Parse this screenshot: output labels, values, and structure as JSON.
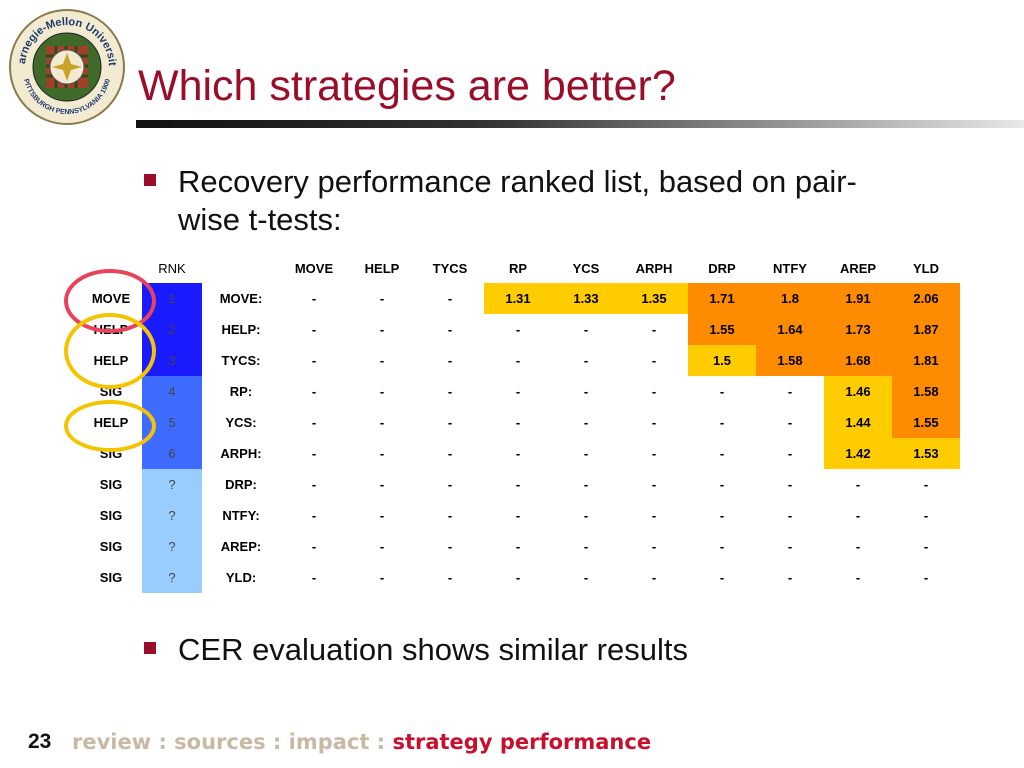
{
  "logo": {
    "text_top": "Carnegie-Mellon University",
    "text_bottom": "PITTSBURGH PENNSYLVANIA 1900"
  },
  "title": "Which strategies are better?",
  "bullets": [
    "Recovery performance ranked list, based on pair-",
    "wise t-tests:",
    "CER evaluation shows similar results"
  ],
  "table": {
    "rnk_header": "RNK",
    "columns": [
      "MOVE",
      "HELP",
      "TYCS",
      "RP",
      "YCS",
      "ARPH",
      "DRP",
      "NTFY",
      "AREP",
      "YLD"
    ],
    "rows": [
      {
        "label": "MOVE",
        "rank": "1",
        "rank_color": "#1a1aff",
        "name": "MOVE:",
        "cells": [
          "-",
          "-",
          "-",
          "1.31",
          "1.33",
          "1.35",
          "1.71",
          "1.8",
          "1.91",
          "2.06"
        ]
      },
      {
        "label": "HELP",
        "rank": "2",
        "rank_color": "#1a1aff",
        "name": "HELP:",
        "cells": [
          "-",
          "-",
          "-",
          "-",
          "-",
          "-",
          "1.55",
          "1.64",
          "1.73",
          "1.87"
        ]
      },
      {
        "label": "HELP",
        "rank": "3",
        "rank_color": "#1a1aff",
        "name": "TYCS:",
        "cells": [
          "-",
          "-",
          "-",
          "-",
          "-",
          "-",
          "1.5",
          "1.58",
          "1.68",
          "1.81"
        ]
      },
      {
        "label": "SIG",
        "rank": "4",
        "rank_color": "#3d6cff",
        "name": "RP:",
        "cells": [
          "-",
          "-",
          "-",
          "-",
          "-",
          "-",
          "-",
          "-",
          "1.46",
          "1.58"
        ]
      },
      {
        "label": "HELP",
        "rank": "5",
        "rank_color": "#3d6cff",
        "name": "YCS:",
        "cells": [
          "-",
          "-",
          "-",
          "-",
          "-",
          "-",
          "-",
          "-",
          "1.44",
          "1.55"
        ]
      },
      {
        "label": "SIG",
        "rank": "6",
        "rank_color": "#3d6cff",
        "name": "ARPH:",
        "cells": [
          "-",
          "-",
          "-",
          "-",
          "-",
          "-",
          "-",
          "-",
          "1.42",
          "1.53"
        ]
      },
      {
        "label": "SIG",
        "rank": "?",
        "rank_color": "#99ccff",
        "name": "DRP:",
        "cells": [
          "-",
          "-",
          "-",
          "-",
          "-",
          "-",
          "-",
          "-",
          "-",
          "-"
        ]
      },
      {
        "label": "SIG",
        "rank": "?",
        "rank_color": "#99ccff",
        "name": "NTFY:",
        "cells": [
          "-",
          "-",
          "-",
          "-",
          "-",
          "-",
          "-",
          "-",
          "-",
          "-"
        ]
      },
      {
        "label": "SIG",
        "rank": "?",
        "rank_color": "#99ccff",
        "name": "AREP:",
        "cells": [
          "-",
          "-",
          "-",
          "-",
          "-",
          "-",
          "-",
          "-",
          "-",
          "-"
        ]
      },
      {
        "label": "SIG",
        "rank": "?",
        "rank_color": "#99ccff",
        "name": "YLD:",
        "cells": [
          "-",
          "-",
          "-",
          "-",
          "-",
          "-",
          "-",
          "-",
          "-",
          "-"
        ]
      }
    ],
    "value_colors": {
      "yellow": "#ffcc00",
      "amber": "#ffa500",
      "orange": "#ff8c00"
    },
    "highlight_colors": {
      "red_ring": "#e8435a",
      "yellow_ring": "#f5c400"
    }
  },
  "footer": {
    "page_number": "23",
    "crumbs": [
      "review",
      "sources",
      "impact"
    ],
    "separator": " : ",
    "current": "strategy performance"
  }
}
